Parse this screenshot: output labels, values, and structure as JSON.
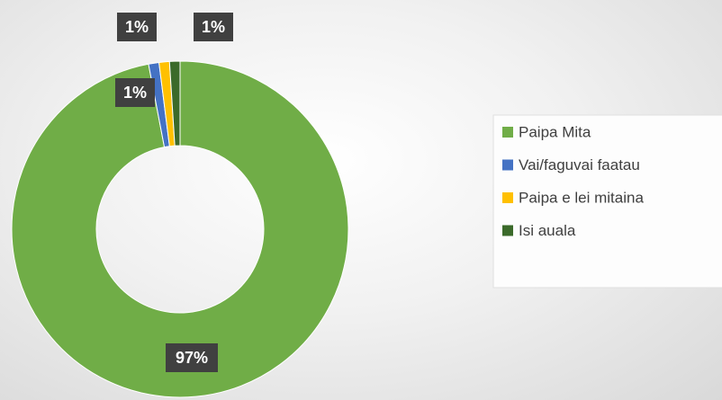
{
  "chart_data": {
    "type": "donut",
    "categories": [
      "Paipa Mita",
      "Vai/faguvai faatau",
      "Paipa e lei mitaina",
      "Isi auala"
    ],
    "values": [
      97,
      1,
      1,
      1
    ],
    "value_labels": [
      "97%",
      "1%",
      "1%",
      "1%"
    ],
    "colors": [
      "#70ad47",
      "#4472c4",
      "#ffc000",
      "#3b6a2a"
    ],
    "legend": "right"
  }
}
